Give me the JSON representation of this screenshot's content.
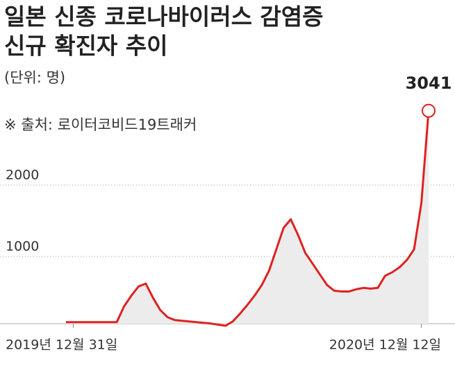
{
  "chart_data": {
    "type": "line",
    "title": [
      "일본 신종 코로나바이러스 감염증",
      "신규 확진자 추이"
    ],
    "subtitle": "(단위: 명)",
    "source": "※ 출처: 로이터코비드19트래커",
    "categories": [
      null,
      "2019년 12월 31일",
      null,
      null,
      null,
      null,
      null,
      null,
      null,
      null,
      null,
      null,
      null,
      null,
      null,
      null,
      null,
      null,
      null,
      null,
      null,
      null,
      null,
      null,
      null,
      null,
      null,
      null,
      null,
      null,
      null,
      null,
      null,
      null,
      null,
      null,
      null,
      null,
      null,
      null,
      null,
      null,
      null,
      null,
      null,
      null,
      null,
      null,
      null,
      "2020년 12월 12일",
      null
    ],
    "series": [
      {
        "name": "신규 확진자",
        "color": "#e02020",
        "values": [
          80,
          80,
          80,
          80,
          80,
          80,
          80,
          80,
          300,
          450,
          580,
          620,
          420,
          250,
          150,
          110,
          100,
          90,
          80,
          70,
          60,
          45,
          30,
          90,
          200,
          320,
          450,
          600,
          800,
          1100,
          1400,
          1520,
          1300,
          1050,
          900,
          750,
          600,
          520,
          510,
          510,
          540,
          560,
          550,
          560,
          730,
          780,
          850,
          950,
          1100,
          1750,
          3041
        ]
      }
    ],
    "ylim": [
      0,
      3100
    ],
    "yticks": [
      1000,
      2000
    ],
    "grid": true
  }
}
